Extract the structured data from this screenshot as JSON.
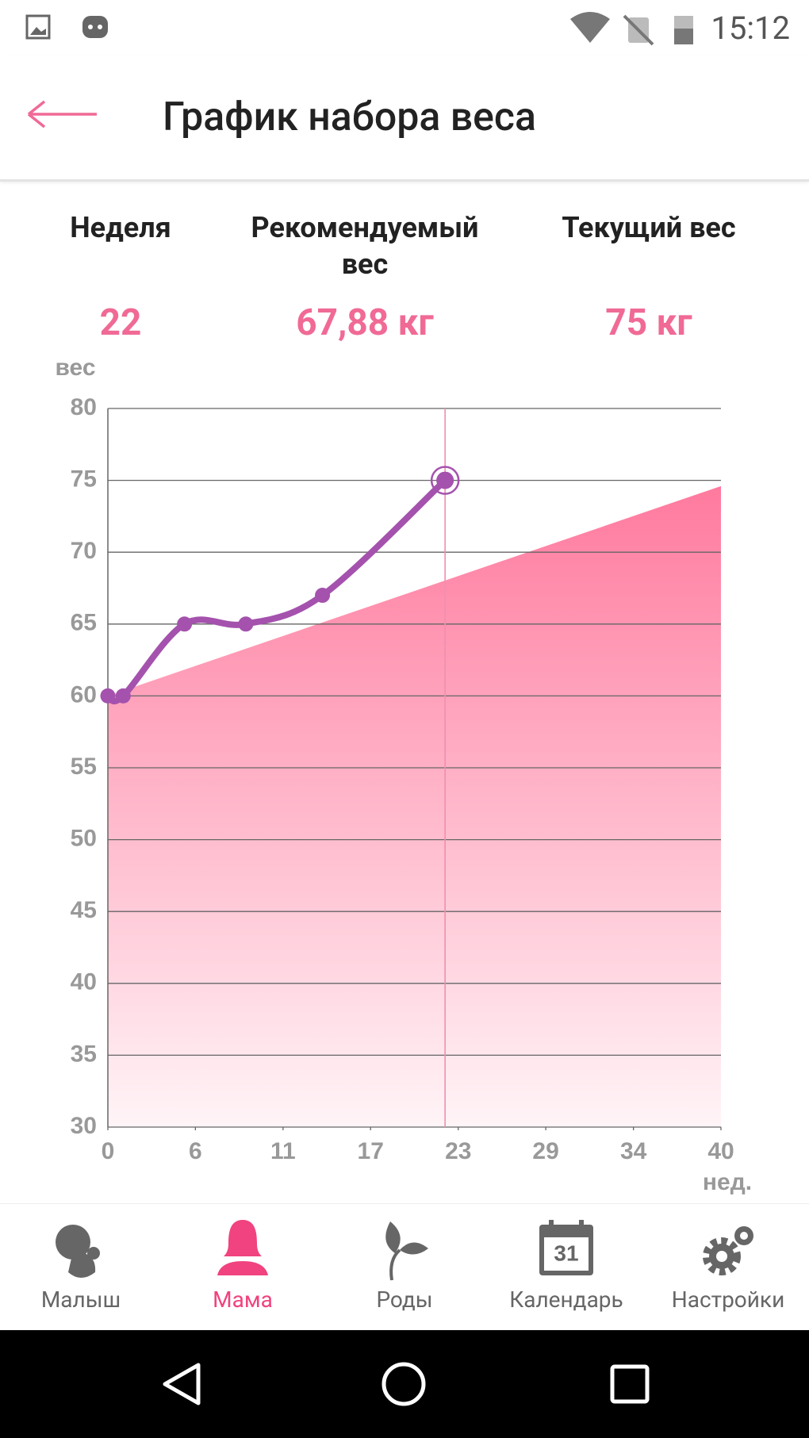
{
  "status_bar": {
    "time": "15:12"
  },
  "header": {
    "title": "График набора веса"
  },
  "stats": [
    {
      "label": "Неделя",
      "value": "22"
    },
    {
      "label": "Рекомендуемый вес",
      "value": "67,88 кг"
    },
    {
      "label": "Текущий вес",
      "value": "75 кг"
    }
  ],
  "chart_data": {
    "type": "line",
    "y_label": "вес",
    "x_label": "нед.",
    "xlim": [
      0,
      40
    ],
    "xticks": [
      0,
      {
        "value": 5.71,
        "label": "6"
      },
      {
        "value": 11.43,
        "label": "11"
      },
      {
        "value": 17.14,
        "label": "17"
      },
      {
        "value": 22.86,
        "label": "23"
      },
      {
        "value": 28.57,
        "label": "29"
      },
      {
        "value": 34.29,
        "label": "34"
      },
      40
    ],
    "ylim": [
      30,
      80
    ],
    "yticks": [
      30,
      35,
      40,
      45,
      50,
      55,
      60,
      65,
      70,
      75,
      80
    ],
    "grid": true,
    "current_week": 22,
    "series": [
      {
        "style": "area",
        "color": "#ff7a9e",
        "x": [
          0,
          40
        ],
        "values": [
          60,
          74.6
        ]
      },
      {
        "style": "line",
        "color": "#a452ad",
        "x": [
          0,
          1,
          5,
          9,
          14,
          22
        ],
        "values": [
          60,
          60,
          65,
          65,
          67,
          75
        ]
      }
    ]
  },
  "nav": {
    "items": [
      "Малыш",
      "Мама",
      "Роды",
      "Календарь",
      "Настройки"
    ],
    "active": 1,
    "calendar_day": "31"
  }
}
